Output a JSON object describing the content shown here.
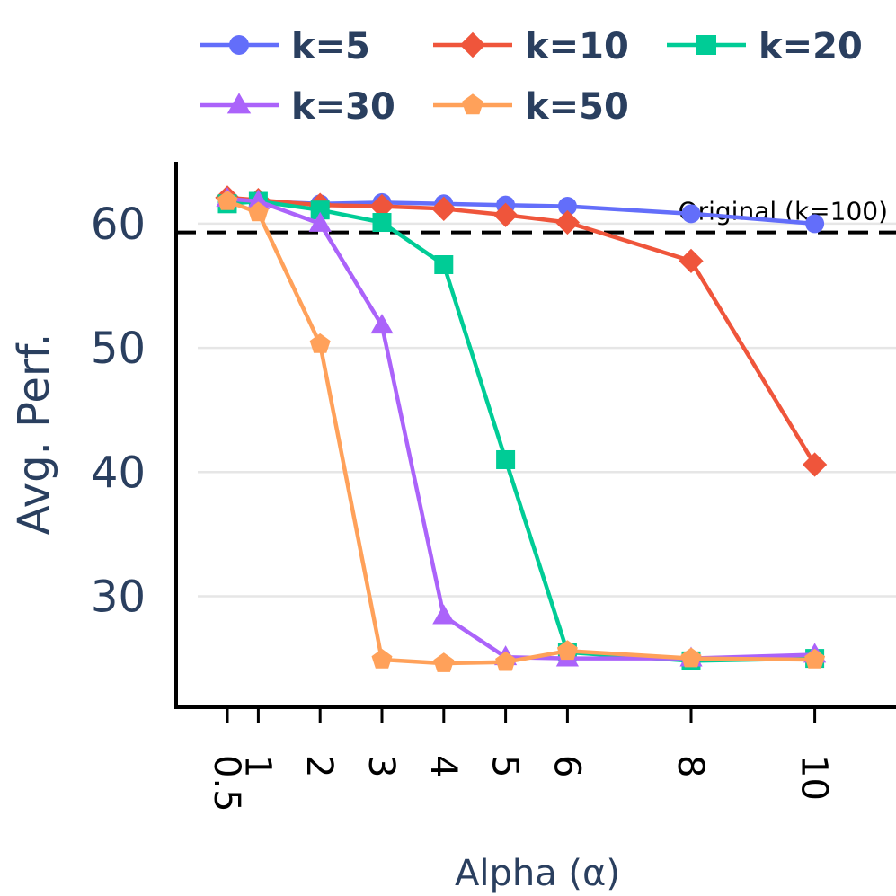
{
  "chart_data": {
    "type": "line",
    "title": "",
    "xlabel": "Alpha (α)",
    "ylabel": "Avg. Perf.",
    "x": [
      0.5,
      1,
      2,
      3,
      4,
      5,
      6,
      8,
      10
    ],
    "x_tick_labels": [
      "0.5",
      "1",
      "2",
      "3",
      "4",
      "5",
      "6",
      "8",
      "10"
    ],
    "y_ticks": [
      30,
      40,
      50,
      60
    ],
    "y_tick_labels": [
      "30",
      "40",
      "50",
      "60"
    ],
    "xlim": [
      -0.3,
      10.8
    ],
    "ylim": [
      21.5,
      64.8
    ],
    "grid": "horizontal",
    "legend_position": "top",
    "series": [
      {
        "name": "k=5",
        "color": "#636efa",
        "marker": "circle",
        "values": [
          62.0,
          61.8,
          61.6,
          61.7,
          61.6,
          61.5,
          61.4,
          60.8,
          60.0
        ]
      },
      {
        "name": "k=10",
        "color": "#ef553b",
        "marker": "diamond",
        "values": [
          62.1,
          61.9,
          61.5,
          61.4,
          61.2,
          60.7,
          60.1,
          57.0,
          40.6
        ]
      },
      {
        "name": "k=20",
        "color": "#00cc96",
        "marker": "square",
        "values": [
          61.6,
          61.8,
          61.1,
          60.1,
          56.7,
          41.0,
          25.5,
          24.8,
          25.0
        ]
      },
      {
        "name": "k=30",
        "color": "#ab63fa",
        "marker": "triangle-up",
        "values": [
          62.0,
          61.8,
          60.0,
          51.8,
          28.4,
          25.1,
          25.0,
          25.0,
          25.3
        ]
      },
      {
        "name": "k=50",
        "color": "#ffa15a",
        "marker": "pentagon",
        "values": [
          61.8,
          60.9,
          50.3,
          24.9,
          24.6,
          24.7,
          25.6,
          25.0,
          24.9
        ]
      }
    ],
    "reference_line": {
      "label": "Original (k=100)",
      "value": 59.3,
      "style": "dashed",
      "color": "#000000"
    }
  }
}
